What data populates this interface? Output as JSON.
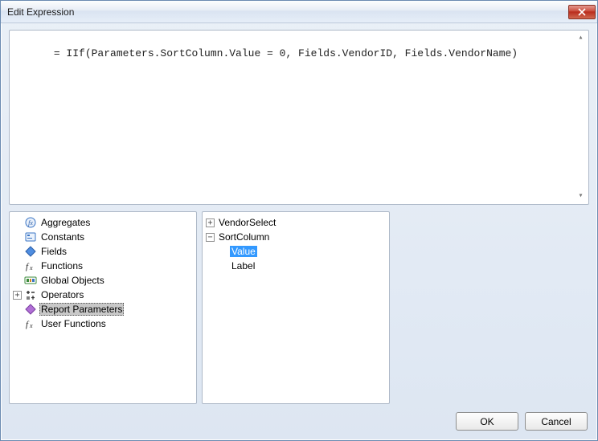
{
  "window": {
    "title": "Edit Expression"
  },
  "expression": "= IIf(Parameters.SortColumn.Value = 0, Fields.VendorID, Fields.VendorName)",
  "categories": [
    {
      "label": "Aggregates",
      "icon": "fx-circle",
      "expandable": false,
      "selected": false
    },
    {
      "label": "Constants",
      "icon": "const",
      "expandable": false,
      "selected": false
    },
    {
      "label": "Fields",
      "icon": "field",
      "expandable": false,
      "selected": false
    },
    {
      "label": "Functions",
      "icon": "fx",
      "expandable": false,
      "selected": false
    },
    {
      "label": "Global Objects",
      "icon": "globals",
      "expandable": false,
      "selected": false
    },
    {
      "label": "Operators",
      "icon": "ops",
      "expandable": true,
      "selected": false
    },
    {
      "label": "Report Parameters",
      "icon": "param",
      "expandable": false,
      "selected": true
    },
    {
      "label": "User Functions",
      "icon": "fx",
      "expandable": false,
      "selected": false
    }
  ],
  "members": {
    "nodes": [
      {
        "label": "VendorSelect",
        "expanded": false,
        "children": []
      },
      {
        "label": "SortColumn",
        "expanded": true,
        "children": [
          {
            "label": "Value",
            "highlighted": true
          },
          {
            "label": "Label",
            "highlighted": false
          }
        ]
      }
    ]
  },
  "buttons": {
    "ok": "OK",
    "cancel": "Cancel"
  },
  "colors": {
    "highlight_bg": "#3399ff",
    "selection_bg": "#c8c8c8",
    "panel_border": "#aeb9c8",
    "window_bg_top": "#eaf0f7",
    "window_bg_bot": "#dde6f2"
  }
}
